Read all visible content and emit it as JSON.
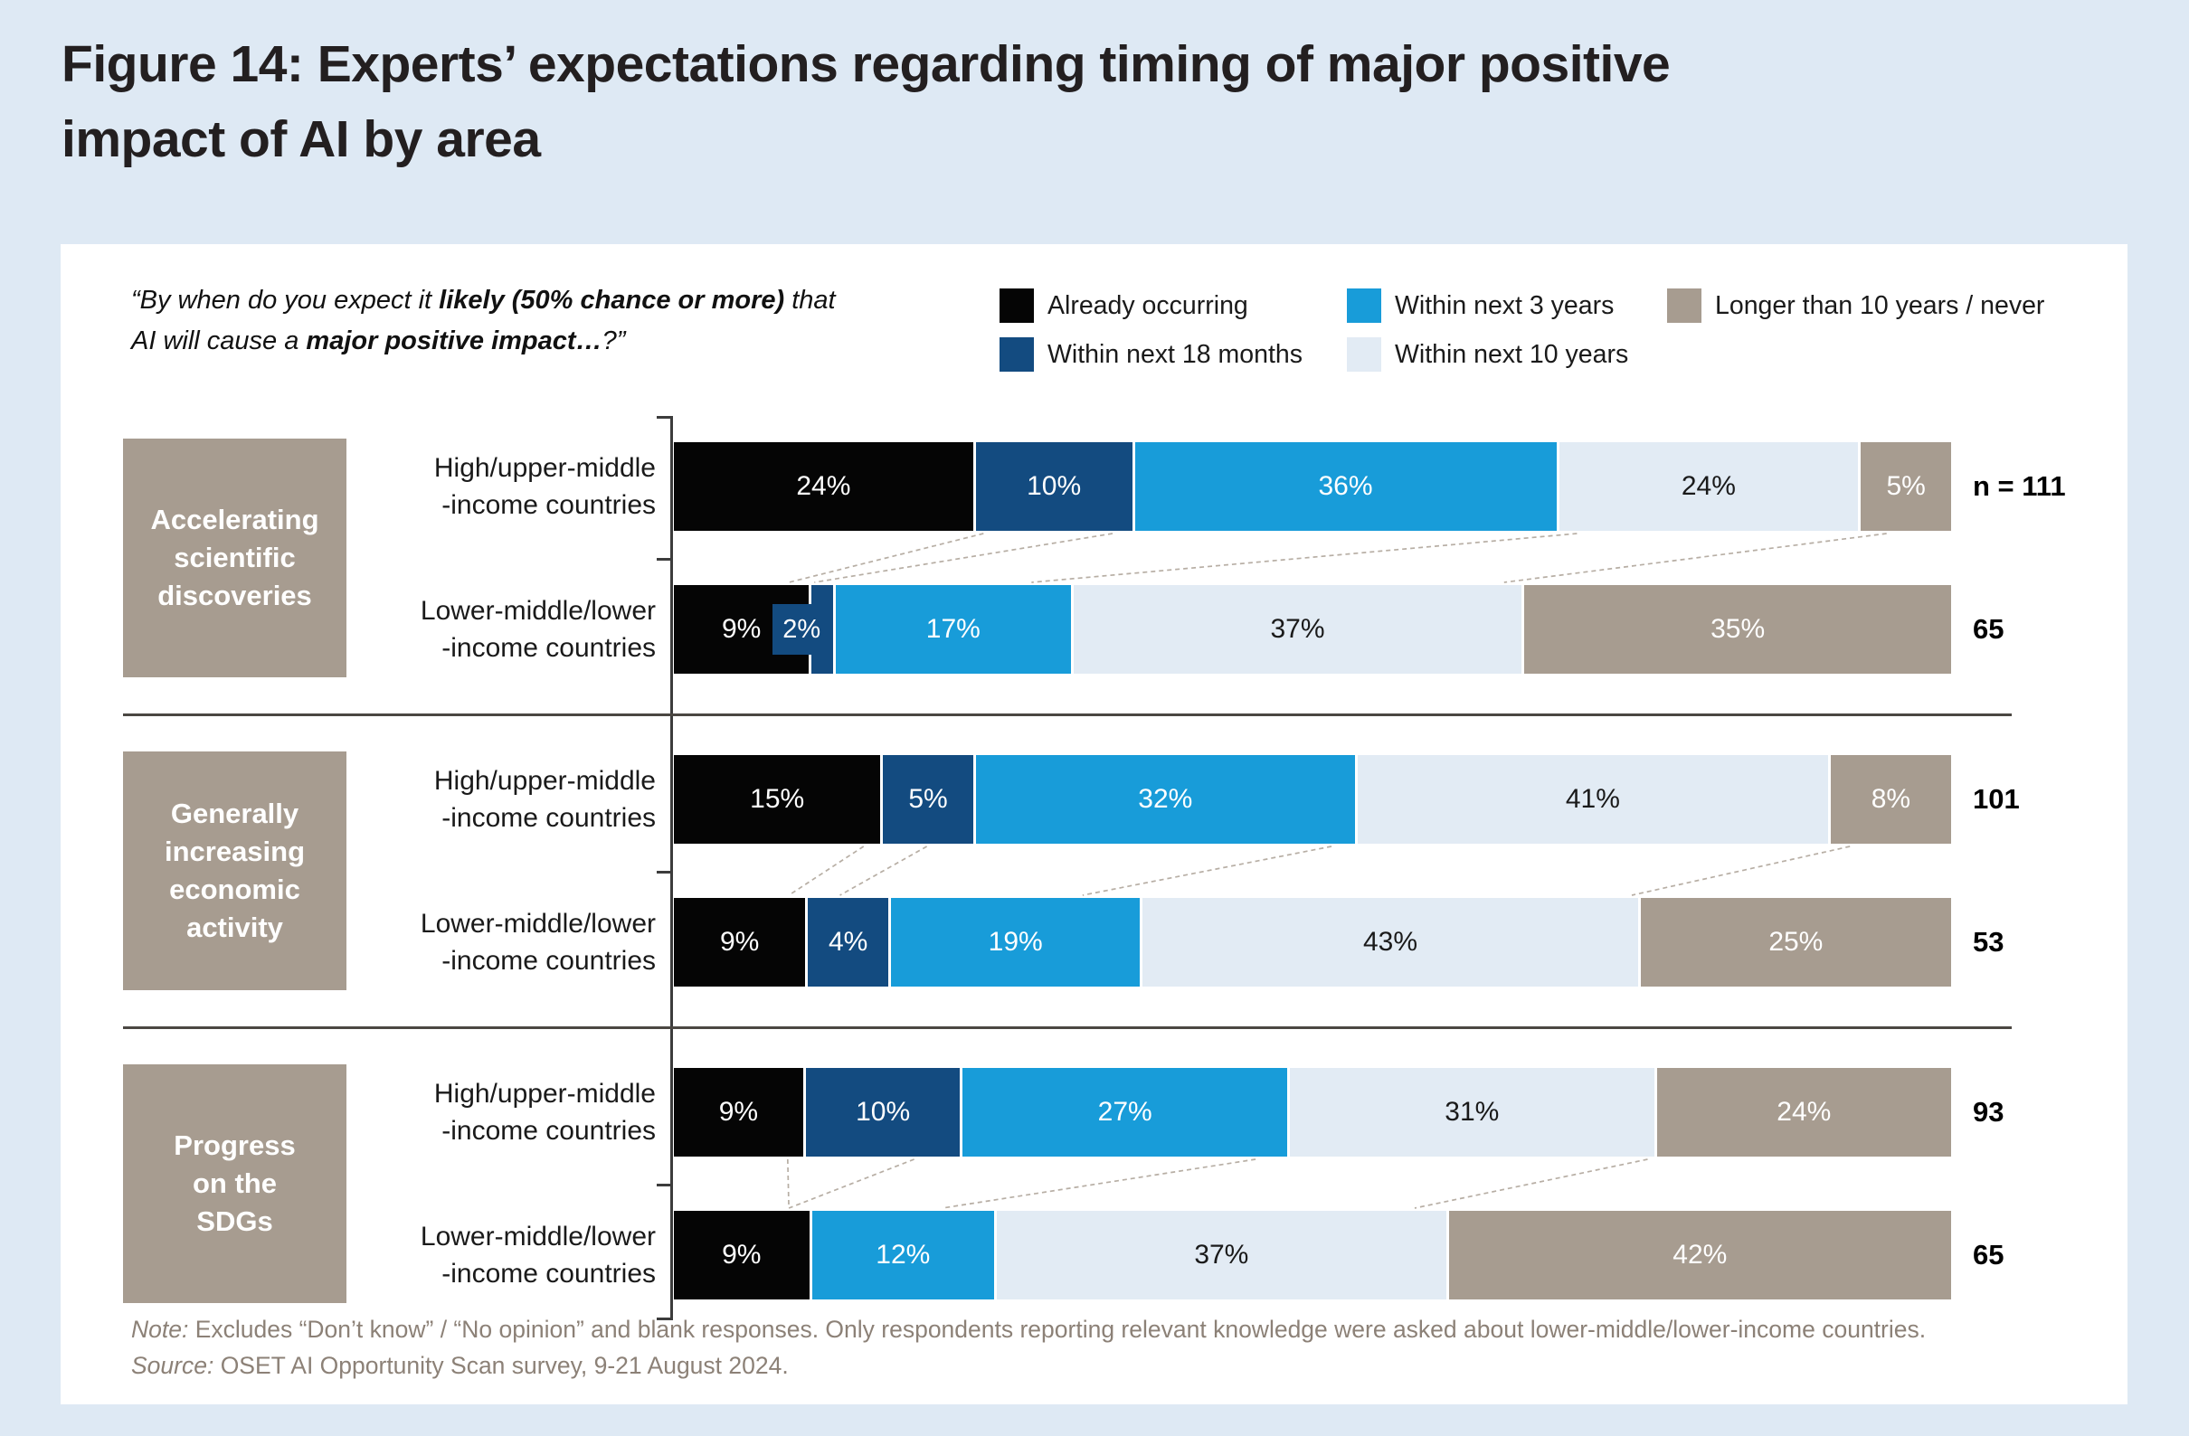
{
  "figure": {
    "title": "Figure 14: Experts’ expectations regarding timing of major positive impact of AI by area"
  },
  "question": {
    "segments": [
      {
        "text": "“By when do you expect it ",
        "bold": false
      },
      {
        "text": "likely (50% chance or more)",
        "bold": true
      },
      {
        "text": " that AI will cause a ",
        "bold": false
      },
      {
        "text": "major positive impact…",
        "bold": true
      },
      {
        "text": "?”",
        "bold": false
      }
    ]
  },
  "legend": {
    "items": [
      {
        "label": "Already occurring",
        "color": "#050505"
      },
      {
        "label": "Within next 3 years",
        "color": "#189cd9"
      },
      {
        "label": "Longer than 10 years / never",
        "color": "#a79c90"
      },
      {
        "label": "Within next 18 months",
        "color": "#134b80"
      },
      {
        "label": "Within next 10 years",
        "color": "#e2ebf4"
      }
    ]
  },
  "chart_data": {
    "type": "bar",
    "stacked": true,
    "orientation": "horizontal",
    "unit": "%",
    "series_labels": [
      "Already occurring",
      "Within next 18 months",
      "Within next 3 years",
      "Within next 10 years",
      "Longer than 10 years / never"
    ],
    "series_colors": [
      "#050505",
      "#134b80",
      "#189cd9",
      "#e2ebf4",
      "#a79c90"
    ],
    "xlim": [
      0,
      100
    ],
    "groups": [
      {
        "area": "Accelerating scientific discoveries",
        "area_lines": [
          "Accelerating",
          "scientific",
          "discoveries"
        ],
        "rows": [
          {
            "label_lines": [
              "High/upper-middle",
              "-income countries"
            ],
            "values": [
              24,
              10,
              36,
              24,
              5
            ],
            "n_label": "n = 111"
          },
          {
            "label_lines": [
              "Lower-middle/lower",
              "-income countries"
            ],
            "values": [
              9,
              2,
              17,
              37,
              35
            ],
            "n_label": "65"
          }
        ]
      },
      {
        "area": "Generally increasing economic activity",
        "area_lines": [
          "Generally",
          "increasing",
          "economic",
          "activity"
        ],
        "rows": [
          {
            "label_lines": [
              "High/upper-middle",
              "-income countries"
            ],
            "values": [
              15,
              5,
              32,
              41,
              8
            ],
            "n_label": "101"
          },
          {
            "label_lines": [
              "Lower-middle/lower",
              "-income countries"
            ],
            "values": [
              9,
              4,
              19,
              43,
              25
            ],
            "n_label": "53"
          }
        ]
      },
      {
        "area": "Progress on the SDGs",
        "area_lines": [
          "Progress",
          "on the",
          "SDGs"
        ],
        "rows": [
          {
            "label_lines": [
              "High/upper-middle",
              "-income countries"
            ],
            "values": [
              9,
              10,
              27,
              31,
              24
            ],
            "n_label": "93"
          },
          {
            "label_lines": [
              "Lower-middle/lower",
              "-income countries"
            ],
            "values": [
              9,
              0,
              12,
              37,
              42
            ],
            "n_label": "65"
          }
        ]
      }
    ]
  },
  "notes": {
    "note_label": "Note:",
    "note_text": " Excludes “Don’t know” / “No opinion” and blank responses. Only respondents reporting relevant knowledge were asked about lower-middle/lower-income countries.",
    "source_label": "Source:",
    "source_text": " OSET AI Opportunity Scan survey, 9-21 August 2024."
  }
}
